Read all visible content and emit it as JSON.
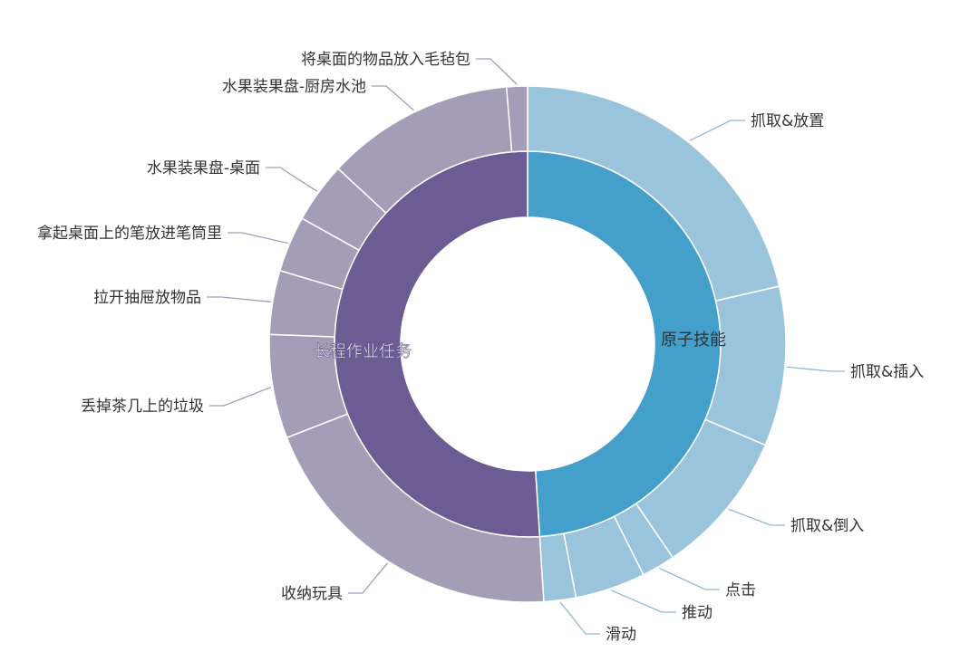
{
  "chart_data": {
    "type": "sunburst",
    "title": "",
    "unit": "percent (estimated from arc angles)",
    "colors": {
      "atomic_inner": "#449fca",
      "atomic_outer": "#9ac4dc",
      "long_inner": "#6b5d94",
      "long_outer": "#a49db6"
    },
    "inner": [
      {
        "name": "原子技能",
        "value": 49.0
      },
      {
        "name": "长程作业任务",
        "value": 51.0
      }
    ],
    "outer": [
      {
        "parent": "原子技能",
        "name": "抓取&放置",
        "value": 21.4
      },
      {
        "parent": "原子技能",
        "name": "抓取&插入",
        "value": 10.0
      },
      {
        "parent": "原子技能",
        "name": "抓取&倒入",
        "value": 9.1
      },
      {
        "parent": "原子技能",
        "name": "点击",
        "value": 2.1
      },
      {
        "parent": "原子技能",
        "name": "推动",
        "value": 4.4
      },
      {
        "parent": "原子技能",
        "name": "滑动",
        "value": 2.0
      },
      {
        "parent": "长程作业任务",
        "name": "收纳玩具",
        "value": 20.1
      },
      {
        "parent": "长程作业任务",
        "name": "丢掉茶几上的垃圾",
        "value": 6.5
      },
      {
        "parent": "长程作业任务",
        "name": "拉开抽屉放物品",
        "value": 4.0
      },
      {
        "parent": "长程作业任务",
        "name": "拿起桌面上的笔放进笔筒里",
        "value": 3.5
      },
      {
        "parent": "长程作业任务",
        "name": "水果装果盘-桌面",
        "value": 3.8
      },
      {
        "parent": "长程作业任务",
        "name": "水果装果盘-厨房水池",
        "value": 11.8
      },
      {
        "parent": "长程作业任务",
        "name": "将桌面的物品放入毛毡包",
        "value": 1.3
      }
    ]
  }
}
